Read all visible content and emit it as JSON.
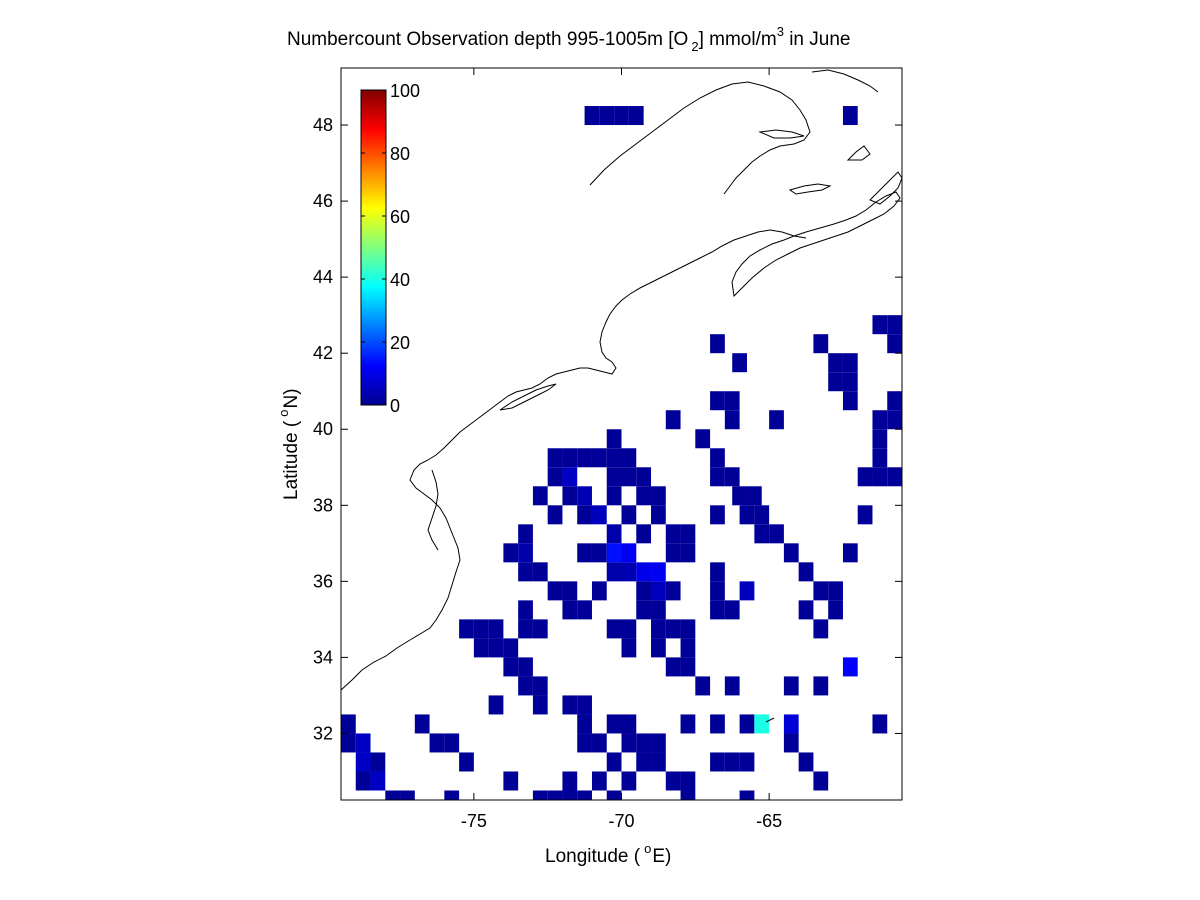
{
  "figure": {
    "title_main": "Numbercount Observation depth 995-1005m [O",
    "title_sub": "2",
    "title_unit": "] mmol/m",
    "title_sup": "3",
    "title_tail": " in June",
    "xlabel_main": "Longitude (",
    "xlabel_sup": "o",
    "xlabel_tail": "E)",
    "ylabel_main": "Latitude (",
    "ylabel_sup": "o",
    "ylabel_tail": "N)"
  },
  "chart_data": {
    "type": "heatmap",
    "xlim": [
      -79.5,
      -60.5
    ],
    "ylim": [
      30.25,
      49.5
    ],
    "cell_size_deg": 0.5,
    "xticks": [
      -75,
      -70,
      -65
    ],
    "xtick_labels": [
      "-75",
      "-70",
      "-65"
    ],
    "yticks": [
      32,
      34,
      36,
      38,
      40,
      42,
      44,
      46,
      48
    ],
    "ytick_labels": [
      "32",
      "34",
      "36",
      "38",
      "40",
      "42",
      "44",
      "46",
      "48"
    ],
    "colorbar": {
      "colormap": "jet",
      "range": [
        0,
        100
      ],
      "ticks": [
        0,
        20,
        40,
        60,
        80,
        100
      ],
      "tick_labels": [
        "0",
        "20",
        "40",
        "60",
        "80",
        "100"
      ]
    },
    "coastline_color": "#000000",
    "cells": [
      [
        -71,
        48.25,
        1
      ],
      [
        -70.5,
        48.25,
        1
      ],
      [
        -70,
        48.25,
        1
      ],
      [
        -69.5,
        48.25,
        1
      ],
      [
        -62.25,
        48.25,
        1
      ],
      [
        -61.25,
        42.75,
        1
      ],
      [
        -60.75,
        42.75,
        1
      ],
      [
        -60.25,
        43.25,
        1
      ],
      [
        -66.75,
        42.25,
        1
      ],
      [
        -63.25,
        42.25,
        1
      ],
      [
        -60.75,
        42.25,
        1
      ],
      [
        -60.25,
        42.25,
        1
      ],
      [
        -66,
        41.75,
        1
      ],
      [
        -62.75,
        41.75,
        1
      ],
      [
        -62.25,
        41.75,
        1
      ],
      [
        -60.25,
        41.75,
        1
      ],
      [
        -62.75,
        41.25,
        1
      ],
      [
        -62.25,
        41.25,
        1
      ],
      [
        -66.75,
        40.75,
        1
      ],
      [
        -66.25,
        40.75,
        1
      ],
      [
        -62.25,
        40.75,
        1
      ],
      [
        -60.75,
        40.75,
        1
      ],
      [
        -68.25,
        40.25,
        1
      ],
      [
        -66.25,
        40.25,
        1
      ],
      [
        -64.75,
        40.25,
        1
      ],
      [
        -61.25,
        40.25,
        1
      ],
      [
        -60.75,
        40.25,
        1
      ],
      [
        -70.25,
        39.75,
        1
      ],
      [
        -67.25,
        39.75,
        1
      ],
      [
        -61.25,
        39.75,
        1
      ],
      [
        -72.25,
        39.25,
        1
      ],
      [
        -71.75,
        39.25,
        1
      ],
      [
        -71.25,
        39.25,
        1
      ],
      [
        -70.75,
        39.25,
        1
      ],
      [
        -70.25,
        39.25,
        1
      ],
      [
        -69.75,
        39.25,
        1
      ],
      [
        -66.75,
        39.25,
        1
      ],
      [
        -61.25,
        39.25,
        1
      ],
      [
        -72.25,
        38.75,
        1
      ],
      [
        -71.75,
        38.75,
        6
      ],
      [
        -70.25,
        38.75,
        1
      ],
      [
        -69.75,
        38.75,
        1
      ],
      [
        -69.25,
        38.75,
        1
      ],
      [
        -66.75,
        38.75,
        1
      ],
      [
        -66.25,
        38.75,
        1
      ],
      [
        -61.75,
        38.75,
        1
      ],
      [
        -61.25,
        38.75,
        1
      ],
      [
        -60.75,
        38.75,
        1
      ],
      [
        -72.75,
        38.25,
        1
      ],
      [
        -71.75,
        38.25,
        1
      ],
      [
        -71.25,
        38.25,
        4
      ],
      [
        -70.25,
        38.25,
        1
      ],
      [
        -69.25,
        38.25,
        1
      ],
      [
        -68.75,
        38.25,
        1
      ],
      [
        -66,
        38.25,
        1
      ],
      [
        -65.5,
        38.25,
        1
      ],
      [
        -72.25,
        37.75,
        1
      ],
      [
        -71.25,
        37.75,
        1
      ],
      [
        -70.75,
        37.75,
        5
      ],
      [
        -69.75,
        37.75,
        1
      ],
      [
        -68.75,
        37.75,
        1
      ],
      [
        -66.75,
        37.75,
        1
      ],
      [
        -65.75,
        37.75,
        1
      ],
      [
        -65.25,
        37.75,
        1
      ],
      [
        -61.75,
        37.75,
        1
      ],
      [
        -73.25,
        37.25,
        1
      ],
      [
        -70.25,
        37.25,
        3
      ],
      [
        -69.25,
        37.25,
        1
      ],
      [
        -68.25,
        37.25,
        1
      ],
      [
        -67.75,
        37.25,
        1
      ],
      [
        -65.25,
        37.25,
        1
      ],
      [
        -64.75,
        37.25,
        1
      ],
      [
        -73.75,
        36.75,
        1
      ],
      [
        -73.25,
        36.75,
        3
      ],
      [
        -71.25,
        36.75,
        1
      ],
      [
        -70.75,
        36.75,
        1
      ],
      [
        -70.25,
        36.75,
        14
      ],
      [
        -69.75,
        36.75,
        11
      ],
      [
        -68.25,
        36.75,
        1
      ],
      [
        -67.75,
        36.75,
        1
      ],
      [
        -64.25,
        36.75,
        1
      ],
      [
        -62.25,
        36.75,
        1
      ],
      [
        -73.25,
        36.25,
        1
      ],
      [
        -72.75,
        36.25,
        1
      ],
      [
        -70.25,
        36.25,
        3
      ],
      [
        -69.75,
        36.25,
        4
      ],
      [
        -69.25,
        36.25,
        10
      ],
      [
        -68.75,
        36.25,
        11
      ],
      [
        -66.75,
        36.25,
        1
      ],
      [
        -63.75,
        36.25,
        1
      ],
      [
        -72.25,
        35.75,
        1
      ],
      [
        -71.75,
        35.75,
        1
      ],
      [
        -70.75,
        35.75,
        1
      ],
      [
        -69.25,
        35.75,
        1
      ],
      [
        -68.75,
        35.75,
        5
      ],
      [
        -68.25,
        35.75,
        1
      ],
      [
        -66.75,
        35.75,
        1
      ],
      [
        -65.75,
        35.75,
        5
      ],
      [
        -63.25,
        35.75,
        1
      ],
      [
        -62.75,
        35.75,
        1
      ],
      [
        -60.25,
        35.75,
        1
      ],
      [
        -73.25,
        35.25,
        1
      ],
      [
        -71.75,
        35.25,
        1
      ],
      [
        -71.25,
        35.25,
        1
      ],
      [
        -69.25,
        35.25,
        1
      ],
      [
        -68.75,
        35.25,
        1
      ],
      [
        -66.75,
        35.25,
        1
      ],
      [
        -66.25,
        35.25,
        1
      ],
      [
        -63.75,
        35.25,
        1
      ],
      [
        -62.75,
        35.25,
        1
      ],
      [
        -75.25,
        34.75,
        1
      ],
      [
        -74.75,
        34.75,
        1
      ],
      [
        -74.25,
        34.75,
        1
      ],
      [
        -73.25,
        34.75,
        1
      ],
      [
        -72.75,
        34.75,
        1
      ],
      [
        -70.25,
        34.75,
        1
      ],
      [
        -69.75,
        34.75,
        1
      ],
      [
        -68.75,
        34.75,
        1
      ],
      [
        -68.25,
        34.75,
        1
      ],
      [
        -67.75,
        34.75,
        1
      ],
      [
        -63.25,
        34.75,
        1
      ],
      [
        -74.75,
        34.25,
        1
      ],
      [
        -74.25,
        34.25,
        1
      ],
      [
        -73.75,
        34.25,
        1
      ],
      [
        -69.75,
        34.25,
        1
      ],
      [
        -68.75,
        34.25,
        1
      ],
      [
        -67.75,
        34.25,
        1
      ],
      [
        -73.75,
        33.75,
        1
      ],
      [
        -73.25,
        33.75,
        1
      ],
      [
        -68.25,
        33.75,
        1
      ],
      [
        -67.75,
        33.75,
        1
      ],
      [
        -62.25,
        33.75,
        12
      ],
      [
        -73.25,
        33.25,
        1
      ],
      [
        -72.75,
        33.25,
        1
      ],
      [
        -67.25,
        33.25,
        1
      ],
      [
        -66.25,
        33.25,
        1
      ],
      [
        -64.25,
        33.25,
        1
      ],
      [
        -63.25,
        33.25,
        1
      ],
      [
        -74.25,
        32.75,
        1
      ],
      [
        -72.75,
        32.75,
        1
      ],
      [
        -71.75,
        32.75,
        1
      ],
      [
        -71.25,
        32.75,
        1
      ],
      [
        -79.25,
        32.25,
        1
      ],
      [
        -76.75,
        32.25,
        1
      ],
      [
        -71.25,
        32.25,
        1
      ],
      [
        -70.25,
        32.25,
        1
      ],
      [
        -69.75,
        32.25,
        1
      ],
      [
        -67.75,
        32.25,
        1
      ],
      [
        -66.75,
        32.25,
        1
      ],
      [
        -65.75,
        32.25,
        1
      ],
      [
        -65.25,
        32.25,
        40
      ],
      [
        -64.25,
        32.25,
        8
      ],
      [
        -61.25,
        32.25,
        1
      ],
      [
        -79.25,
        31.75,
        1
      ],
      [
        -78.75,
        31.75,
        6
      ],
      [
        -76.25,
        31.75,
        1
      ],
      [
        -75.75,
        31.75,
        1
      ],
      [
        -71.25,
        31.75,
        1
      ],
      [
        -70.75,
        31.75,
        1
      ],
      [
        -69.75,
        31.75,
        1
      ],
      [
        -69.25,
        31.75,
        1
      ],
      [
        -68.75,
        31.75,
        1
      ],
      [
        -64.25,
        31.75,
        1
      ],
      [
        -78.75,
        31.25,
        6
      ],
      [
        -78.25,
        31.25,
        1
      ],
      [
        -75.25,
        31.25,
        1
      ],
      [
        -70.25,
        31.25,
        1
      ],
      [
        -69.25,
        31.25,
        1
      ],
      [
        -68.75,
        31.25,
        1
      ],
      [
        -66.75,
        31.25,
        1
      ],
      [
        -66.25,
        31.25,
        1
      ],
      [
        -65.75,
        31.25,
        1
      ],
      [
        -63.75,
        31.25,
        1
      ],
      [
        -78.75,
        30.75,
        1
      ],
      [
        -78.25,
        30.75,
        6
      ],
      [
        -73.75,
        30.75,
        1
      ],
      [
        -71.75,
        30.75,
        1
      ],
      [
        -70.75,
        30.75,
        1
      ],
      [
        -69.75,
        30.75,
        1
      ],
      [
        -68.25,
        30.75,
        1
      ],
      [
        -67.75,
        30.75,
        1
      ],
      [
        -63.25,
        30.75,
        1
      ],
      [
        -77.75,
        30.25,
        1
      ],
      [
        -77.25,
        30.25,
        1
      ],
      [
        -75.75,
        30.25,
        1
      ],
      [
        -72.75,
        30.25,
        1
      ],
      [
        -72.25,
        30.25,
        1
      ],
      [
        -71.75,
        30.25,
        1
      ],
      [
        -71.25,
        30.25,
        1
      ],
      [
        -70.25,
        30.25,
        1
      ],
      [
        -67.75,
        30.25,
        1
      ],
      [
        -65.75,
        30.25,
        1
      ]
    ]
  }
}
